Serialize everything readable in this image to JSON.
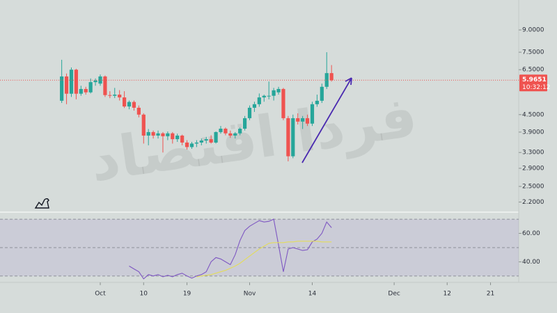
{
  "chart_data": [
    {
      "type": "candlestick",
      "watermark": "فردا اقتصاد",
      "x": [
        -8,
        -7,
        -6,
        -5,
        -4,
        -3,
        -2,
        -1,
        0,
        1,
        2,
        3,
        4,
        5,
        6,
        7,
        8,
        9,
        10,
        11,
        12,
        13,
        14,
        15,
        16,
        17,
        18,
        19,
        20,
        21,
        22,
        23,
        24,
        25,
        26,
        27,
        28,
        29,
        30,
        31,
        32,
        33,
        34,
        35,
        36,
        37,
        38,
        39,
        40,
        41,
        42,
        43,
        44,
        45,
        46,
        47,
        48
      ],
      "open": [
        5.04,
        6.15,
        5.34,
        6.5,
        5.34,
        5.55,
        5.4,
        5.87,
        5.8,
        6.15,
        5.28,
        5.25,
        5.3,
        5.18,
        4.81,
        4.99,
        4.76,
        4.5,
        3.79,
        3.9,
        3.79,
        3.86,
        3.77,
        3.86,
        3.68,
        3.79,
        3.58,
        3.45,
        3.55,
        3.58,
        3.64,
        3.68,
        3.58,
        3.9,
        4.01,
        3.86,
        3.79,
        3.86,
        4.01,
        4.37,
        4.76,
        4.9,
        5.18,
        5.25,
        5.25,
        5.4,
        5.55,
        4.37,
        3.2,
        4.37,
        4.25,
        4.37,
        4.18,
        4.9,
        5.04,
        5.65,
        6.32
      ],
      "high": [
        7.05,
        6.3,
        6.62,
        6.55,
        5.7,
        5.65,
        6.05,
        6.05,
        6.25,
        6.2,
        5.45,
        5.6,
        5.5,
        5.45,
        5.05,
        5.05,
        4.85,
        4.55,
        4.0,
        3.95,
        3.95,
        3.9,
        3.92,
        3.9,
        3.85,
        3.82,
        3.65,
        3.6,
        3.65,
        3.7,
        3.75,
        3.8,
        3.92,
        4.1,
        4.05,
        3.95,
        3.9,
        4.05,
        4.45,
        4.85,
        5.0,
        5.35,
        5.3,
        5.9,
        5.6,
        5.65,
        5.6,
        4.45,
        4.5,
        4.55,
        4.45,
        4.5,
        5.0,
        5.3,
        5.8,
        7.5,
        6.75
      ],
      "low": [
        4.95,
        4.9,
        5.2,
        5.1,
        5.25,
        5.3,
        5.35,
        5.7,
        5.7,
        5.2,
        5.15,
        5.15,
        5.05,
        4.75,
        4.7,
        4.65,
        4.4,
        3.55,
        3.5,
        3.7,
        3.7,
        3.3,
        3.65,
        3.55,
        3.6,
        3.5,
        3.38,
        3.4,
        3.45,
        3.5,
        3.55,
        3.55,
        3.55,
        3.85,
        3.8,
        3.72,
        3.7,
        3.8,
        3.95,
        4.3,
        4.6,
        4.8,
        5.0,
        5.1,
        5.05,
        5.3,
        4.3,
        3.07,
        3.15,
        4.15,
        4.0,
        4.1,
        4.1,
        4.8,
        4.95,
        5.55,
        5.9
      ],
      "close": [
        6.15,
        5.34,
        6.5,
        5.34,
        5.55,
        5.4,
        5.87,
        5.95,
        6.15,
        5.28,
        5.25,
        5.3,
        5.18,
        4.81,
        4.99,
        4.76,
        4.5,
        3.79,
        3.9,
        3.79,
        3.86,
        3.77,
        3.86,
        3.68,
        3.79,
        3.58,
        3.45,
        3.55,
        3.58,
        3.64,
        3.68,
        3.58,
        3.9,
        4.01,
        3.86,
        3.79,
        3.86,
        4.01,
        4.37,
        4.76,
        4.9,
        5.18,
        5.25,
        5.25,
        5.49,
        5.55,
        4.37,
        3.2,
        4.37,
        4.25,
        4.37,
        4.18,
        4.9,
        5.04,
        5.65,
        6.32,
        5.9651
      ],
      "up_color": "#26a69a",
      "down_color": "#ef5350",
      "log_scale": true,
      "xlim": [
        -20.81,
        86.85
      ],
      "xticks": [
        {
          "value": 0,
          "label": "Oct"
        },
        {
          "value": 9,
          "label": "10"
        },
        {
          "value": 18,
          "label": "19"
        },
        {
          "value": 31,
          "label": "Nov"
        },
        {
          "value": 44,
          "label": "14"
        },
        {
          "value": 61,
          "label": "Dec"
        },
        {
          "value": 72,
          "label": "12"
        },
        {
          "value": 81,
          "label": "21"
        }
      ],
      "ylim": [
        2.06,
        11.5
      ],
      "yticks": [
        {
          "value": 9,
          "label": "9.0000"
        },
        {
          "value": 7.5,
          "label": "7.5000"
        },
        {
          "value": 6.5,
          "label": "6.5000"
        },
        {
          "value": 4.5,
          "label": "4.5000"
        },
        {
          "value": 3.9,
          "label": "3.9000"
        },
        {
          "value": 3.3,
          "label": "3.3000"
        },
        {
          "value": 2.9,
          "label": "2.9000"
        },
        {
          "value": 2.5,
          "label": "2.5000"
        },
        {
          "value": 2.2,
          "label": "2.2000"
        }
      ],
      "last_price": 5.9651,
      "countdown": "10:32:12"
    },
    {
      "type": "line",
      "series": [
        {
          "color": "#7e57c2",
          "values": [
            null,
            null,
            null,
            null,
            null,
            null,
            null,
            null,
            null,
            null,
            null,
            null,
            null,
            null,
            37,
            35,
            33,
            28,
            31,
            30,
            31,
            29.5,
            30.5,
            29.5,
            31,
            32,
            30,
            28.5,
            30,
            31,
            33,
            40,
            43,
            42,
            40,
            38,
            45,
            55,
            62,
            65,
            67,
            69,
            68,
            68.5,
            70,
            52,
            33,
            49,
            50,
            49,
            48,
            48.5,
            54,
            56,
            60,
            68,
            64
          ]
        },
        {
          "color": "#e3dc5b",
          "values": [
            null,
            null,
            null,
            null,
            null,
            null,
            null,
            null,
            null,
            null,
            null,
            null,
            null,
            null,
            null,
            null,
            null,
            null,
            null,
            null,
            null,
            null,
            null,
            null,
            null,
            null,
            null,
            null,
            29.5,
            30,
            30.5,
            31,
            32,
            33,
            34,
            35.5,
            37,
            39,
            41.5,
            44,
            46.5,
            49,
            51,
            53,
            53.5,
            53.5,
            53.5,
            54,
            54,
            54.5,
            54.5,
            54.5,
            54.5,
            54.5,
            54,
            54,
            54
          ]
        }
      ],
      "ylim": [
        26.5,
        72.5
      ],
      "yticks": [
        {
          "value": 60,
          "label": "60.00"
        },
        {
          "value": 40,
          "label": "40.00"
        }
      ],
      "bands": [
        30,
        50,
        70
      ]
    }
  ]
}
